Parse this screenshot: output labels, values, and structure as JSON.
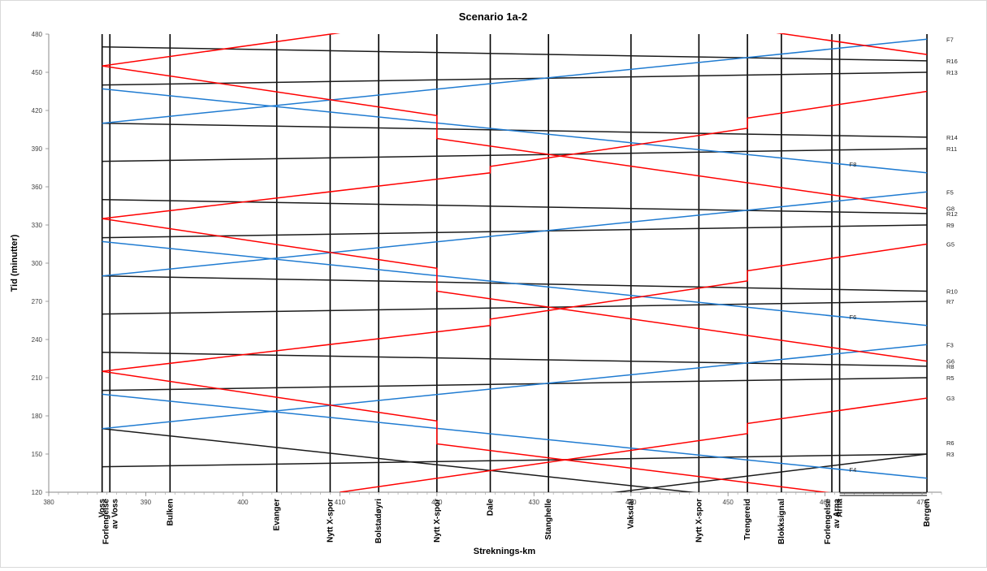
{
  "chart_data": {
    "type": "line",
    "title": "Scenario 1a-2",
    "xlabel": "Streknings-km",
    "ylabel": "Tid (minutter)",
    "xlim": [
      380,
      472
    ],
    "ylim": [
      120,
      480
    ],
    "xticks": [
      380,
      390,
      400,
      410,
      420,
      430,
      440,
      450,
      460,
      470
    ],
    "yticks": [
      120,
      150,
      180,
      210,
      240,
      270,
      300,
      330,
      360,
      390,
      420,
      450,
      480
    ],
    "stations": [
      {
        "name": "Voss",
        "km": 385.5
      },
      {
        "name": "Forlengelse av Voss",
        "km": 386.3
      },
      {
        "name": "Bulken",
        "km": 392.5
      },
      {
        "name": "Evanger",
        "km": 403.5
      },
      {
        "name": "Nytt X-spor",
        "km": 409
      },
      {
        "name": "Bolstadøyri",
        "km": 414
      },
      {
        "name": "Nytt X-spor",
        "km": 420
      },
      {
        "name": "Dale",
        "km": 425.5
      },
      {
        "name": "Stanghelle",
        "km": 431.5
      },
      {
        "name": "Vaksdal",
        "km": 440
      },
      {
        "name": "Nytt X-spor",
        "km": 447
      },
      {
        "name": "Trengereid",
        "km": 452
      },
      {
        "name": "Blokksignal",
        "km": 455.5
      },
      {
        "name": "Forlengelse av Arna",
        "km": 460.7
      },
      {
        "name": "Arna",
        "km": 461.5
      },
      {
        "name": "Bergen",
        "km": 470.5
      }
    ],
    "colors": {
      "black": "#1a1a1a",
      "red": "#ff0000",
      "blue": "#1f7bd1"
    },
    "series": [
      {
        "color": "black",
        "x": [
          385.5,
          470.5
        ],
        "y": [
          140,
          150
        ]
      },
      {
        "color": "black",
        "x": [
          385.5,
          470.5
        ],
        "y": [
          200,
          210
        ]
      },
      {
        "color": "black",
        "x": [
          385.5,
          470.5
        ],
        "y": [
          260,
          270
        ]
      },
      {
        "color": "black",
        "x": [
          385.5,
          470.5
        ],
        "y": [
          320,
          330
        ]
      },
      {
        "color": "black",
        "x": [
          385.5,
          470.5
        ],
        "y": [
          380,
          390
        ]
      },
      {
        "color": "black",
        "x": [
          385.5,
          470.5
        ],
        "y": [
          440,
          450
        ]
      },
      {
        "color": "black",
        "x": [
          385.5,
          470.5
        ],
        "y": [
          170,
          100
        ]
      },
      {
        "color": "black",
        "x": [
          385.5,
          470.5
        ],
        "y": [
          230,
          219
        ]
      },
      {
        "color": "black",
        "x": [
          385.5,
          470.5
        ],
        "y": [
          290,
          278
        ]
      },
      {
        "color": "black",
        "x": [
          385.5,
          470.5
        ],
        "y": [
          350,
          339
        ]
      },
      {
        "color": "black",
        "x": [
          385.5,
          470.5
        ],
        "y": [
          410,
          399
        ]
      },
      {
        "color": "black",
        "x": [
          385.5,
          470.5
        ],
        "y": [
          470,
          459
        ]
      },
      {
        "color": "black",
        "x": [
          430,
          470.5
        ],
        "y": [
          112,
          150
        ]
      },
      {
        "color": "blue",
        "x": [
          385.5,
          470.5
        ],
        "y": [
          170,
          236
        ]
      },
      {
        "color": "blue",
        "x": [
          385.5,
          470.5
        ],
        "y": [
          290,
          356
        ]
      },
      {
        "color": "blue",
        "x": [
          385.5,
          470.5
        ],
        "y": [
          410,
          476
        ]
      },
      {
        "color": "blue",
        "x": [
          385.5,
          470.5
        ],
        "y": [
          197,
          131
        ]
      },
      {
        "color": "blue",
        "x": [
          385.5,
          470.5
        ],
        "y": [
          317,
          251
        ]
      },
      {
        "color": "blue",
        "x": [
          385.5,
          470.5
        ],
        "y": [
          437,
          371
        ]
      },
      {
        "color": "red",
        "x": [
          385.5,
          420,
          420,
          470.5
        ],
        "y": [
          215,
          176,
          158,
          110
        ]
      },
      {
        "color": "red",
        "x": [
          385.5,
          420,
          420,
          470.5
        ],
        "y": [
          335,
          296,
          278,
          223
        ]
      },
      {
        "color": "red",
        "x": [
          385.5,
          420,
          420,
          470.5
        ],
        "y": [
          455,
          416,
          398,
          343
        ]
      },
      {
        "color": "red",
        "x": [
          410,
          452,
          452,
          470.5
        ],
        "y": [
          120,
          166,
          174,
          194
        ]
      },
      {
        "color": "red",
        "x": [
          385.5,
          425.5,
          425.5,
          452,
          452,
          470.5
        ],
        "y": [
          215,
          251,
          256,
          286,
          294,
          315
        ]
      },
      {
        "color": "red",
        "x": [
          385.5,
          425.5,
          425.5,
          452,
          452,
          470.5
        ],
        "y": [
          335,
          371,
          376,
          406,
          414,
          435
        ]
      },
      {
        "color": "red",
        "x": [
          385.5,
          410
        ],
        "y": [
          455,
          481
        ]
      },
      {
        "color": "red",
        "x": [
          455,
          470.5
        ],
        "y": [
          481,
          464
        ]
      }
    ],
    "train_labels": [
      {
        "text": "F7",
        "y": 476
      },
      {
        "text": "R16",
        "y": 459
      },
      {
        "text": "R13",
        "y": 450
      },
      {
        "text": "R14",
        "y": 399
      },
      {
        "text": "R11",
        "y": 390
      },
      {
        "text": "F5",
        "y": 356
      },
      {
        "text": "G8",
        "y": 343
      },
      {
        "text": "R12",
        "y": 339
      },
      {
        "text": "R9",
        "y": 330
      },
      {
        "text": "G5",
        "y": 315
      },
      {
        "text": "R10",
        "y": 278
      },
      {
        "text": "R7",
        "y": 270
      },
      {
        "text": "F3",
        "y": 236
      },
      {
        "text": "G6",
        "y": 223
      },
      {
        "text": "R8",
        "y": 219
      },
      {
        "text": "R5",
        "y": 210
      },
      {
        "text": "G3",
        "y": 194
      },
      {
        "text": "R6",
        "y": 159
      },
      {
        "text": "R3",
        "y": 150
      }
    ],
    "inline_labels": [
      {
        "text": "F8",
        "x": 462.5,
        "y": 378
      },
      {
        "text": "F6",
        "x": 462.5,
        "y": 258
      },
      {
        "text": "F4",
        "x": 462.5,
        "y": 138
      }
    ],
    "grid": false,
    "legend": "none"
  }
}
